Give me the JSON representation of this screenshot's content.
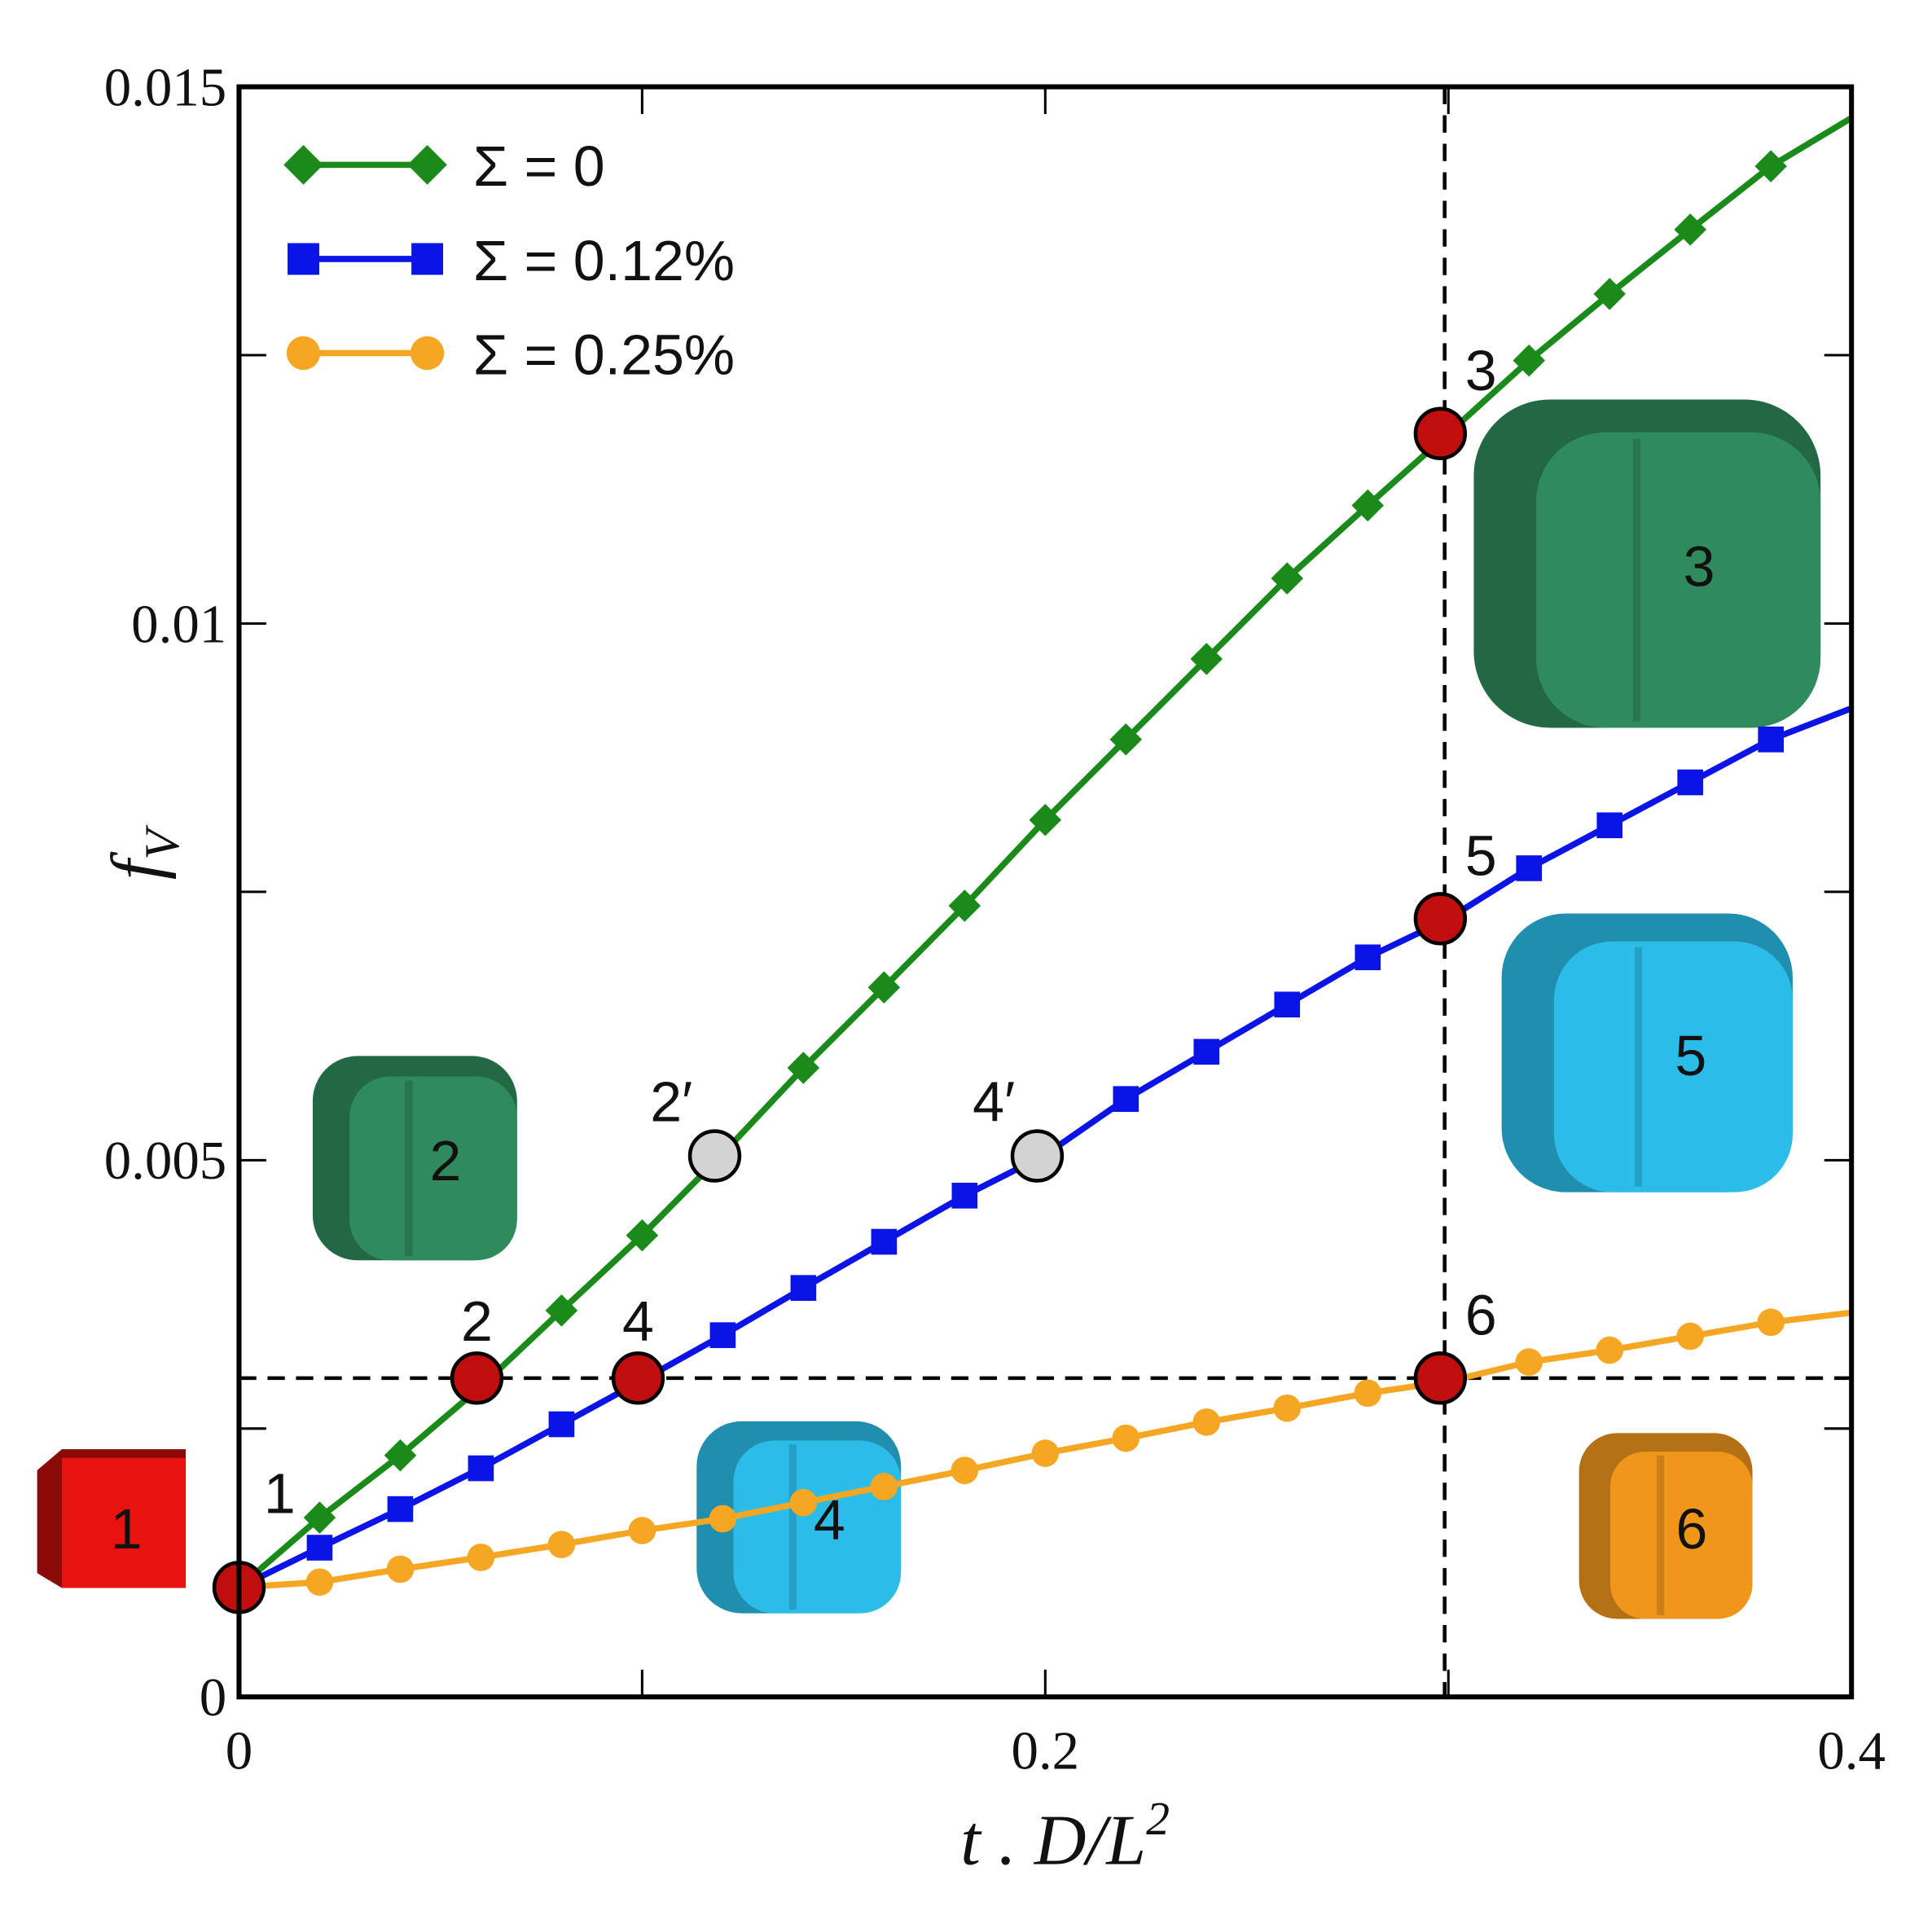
{
  "chart_data": {
    "type": "line",
    "xlabel": "t . D/L²",
    "ylabel": "f_V",
    "xlim": [
      0,
      0.4
    ],
    "ylim": [
      0,
      0.015
    ],
    "x_ticks": [
      0,
      0.1,
      0.2,
      0.3,
      0.4
    ],
    "x_tick_labels": [
      "0",
      "",
      "0.2",
      "",
      "0.4"
    ],
    "y_ticks": [
      0,
      0.0025,
      0.005,
      0.0075,
      0.01,
      0.0125,
      0.015
    ],
    "y_tick_labels": [
      "0",
      "",
      "0.005",
      "",
      "0.01",
      "",
      "0.015"
    ],
    "grid": false,
    "legend_position": "top-left",
    "series": [
      {
        "name": "Σ = 0",
        "color": "#1a8a1a",
        "marker": "diamond",
        "x": [
          0,
          0.02,
          0.04,
          0.06,
          0.08,
          0.1,
          0.12,
          0.14,
          0.16,
          0.18,
          0.2,
          0.22,
          0.24,
          0.26,
          0.28,
          0.3,
          0.32,
          0.34,
          0.36,
          0.38,
          0.4
        ],
        "y": [
          0.00102,
          0.00167,
          0.00225,
          0.00289,
          0.0036,
          0.0043,
          0.00506,
          0.00586,
          0.00661,
          0.00737,
          0.00817,
          0.00892,
          0.00967,
          0.01042,
          0.0111,
          0.01177,
          0.01245,
          0.01307,
          0.01367,
          0.01426,
          0.01471
        ]
      },
      {
        "name": "Σ = 0.12%",
        "color": "#0a14e6",
        "marker": "square",
        "x": [
          0,
          0.02,
          0.04,
          0.06,
          0.08,
          0.1,
          0.12,
          0.14,
          0.16,
          0.18,
          0.2,
          0.22,
          0.24,
          0.26,
          0.28,
          0.3,
          0.32,
          0.34,
          0.36,
          0.38,
          0.4
        ],
        "y": [
          0.00102,
          0.00139,
          0.00175,
          0.00213,
          0.00254,
          0.00295,
          0.00337,
          0.00381,
          0.00424,
          0.00467,
          0.00505,
          0.00557,
          0.00601,
          0.00645,
          0.00689,
          0.00725,
          0.00772,
          0.00812,
          0.00852,
          0.00892,
          0.00921
        ]
      },
      {
        "name": "Σ = 0.25%",
        "color": "#f5a623",
        "marker": "circle",
        "x": [
          0,
          0.02,
          0.04,
          0.06,
          0.08,
          0.1,
          0.12,
          0.14,
          0.16,
          0.18,
          0.2,
          0.22,
          0.24,
          0.26,
          0.28,
          0.3,
          0.32,
          0.34,
          0.36,
          0.38,
          0.4
        ],
        "y": [
          0.00102,
          0.00107,
          0.00119,
          0.0013,
          0.00142,
          0.00155,
          0.00166,
          0.00181,
          0.00196,
          0.00211,
          0.00227,
          0.00241,
          0.00256,
          0.00269,
          0.00283,
          0.00294,
          0.00312,
          0.00323,
          0.00336,
          0.00349,
          0.00358
        ]
      }
    ],
    "reference_lines": {
      "horizontal_y": 0.00297,
      "vertical_x": 0.3
    },
    "highlighted_points": [
      {
        "label": "1",
        "x": 0,
        "y": 0.00102,
        "color": "#c00d0d"
      },
      {
        "label": "2",
        "x": 0.059,
        "y": 0.00297,
        "color": "#c00d0d"
      },
      {
        "label": "4",
        "x": 0.099,
        "y": 0.00297,
        "color": "#c00d0d"
      },
      {
        "label": "6",
        "x": 0.298,
        "y": 0.00297,
        "color": "#c00d0d"
      },
      {
        "label": "3",
        "x": 0.298,
        "y": 0.01177,
        "color": "#c00d0d"
      },
      {
        "label": "5",
        "x": 0.298,
        "y": 0.00725,
        "color": "#c00d0d"
      },
      {
        "label": "2′",
        "x": 0.118,
        "y": 0.00504,
        "color": "#d3d3d3"
      },
      {
        "label": "4′",
        "x": 0.198,
        "y": 0.00504,
        "color": "#d3d3d3"
      }
    ],
    "shape_insets": [
      {
        "label": "1",
        "color": "#e8120f"
      },
      {
        "label": "2",
        "color": "#2f8a5c"
      },
      {
        "label": "3",
        "color": "#2f8a5c"
      },
      {
        "label": "4",
        "color": "#2bbde8"
      },
      {
        "label": "5",
        "color": "#2bbde8"
      },
      {
        "label": "6",
        "color": "#f0961a"
      }
    ]
  }
}
